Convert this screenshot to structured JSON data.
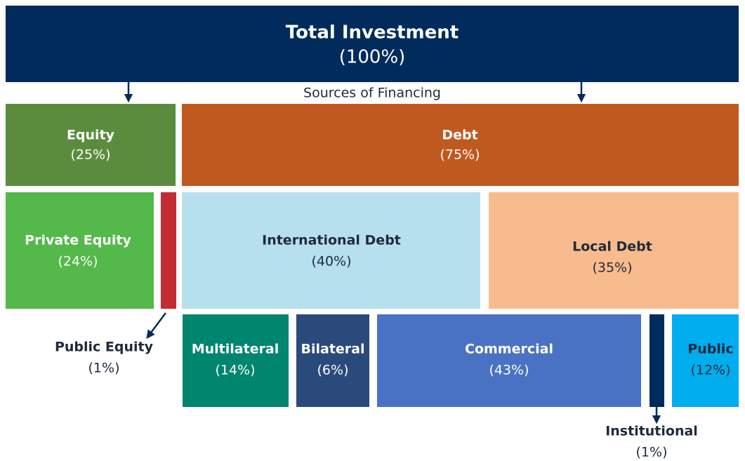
{
  "title": {
    "label": "Total Investment",
    "share": "(100%)"
  },
  "caption": "Sources of Financing",
  "nodes": [
    {
      "label": "Equity",
      "share": "(25%)"
    },
    {
      "label": "Debt",
      "share": "(75%)"
    },
    {
      "label": "Private Equity",
      "share": "(24%)"
    },
    {
      "label": "Public Equity",
      "share": "(1%)"
    },
    {
      "label": "International Debt",
      "share": "(40%)"
    },
    {
      "label": "Local Debt",
      "share": "(35%)"
    },
    {
      "label": "Multilateral",
      "share": "(14%)"
    },
    {
      "label": "Bilateral",
      "share": "(6%)"
    },
    {
      "label": "Commercial",
      "share": "(43%)"
    },
    {
      "label": "Institutional",
      "share": "(1%)"
    },
    {
      "label": "Public",
      "share": "(12%)"
    }
  ]
}
